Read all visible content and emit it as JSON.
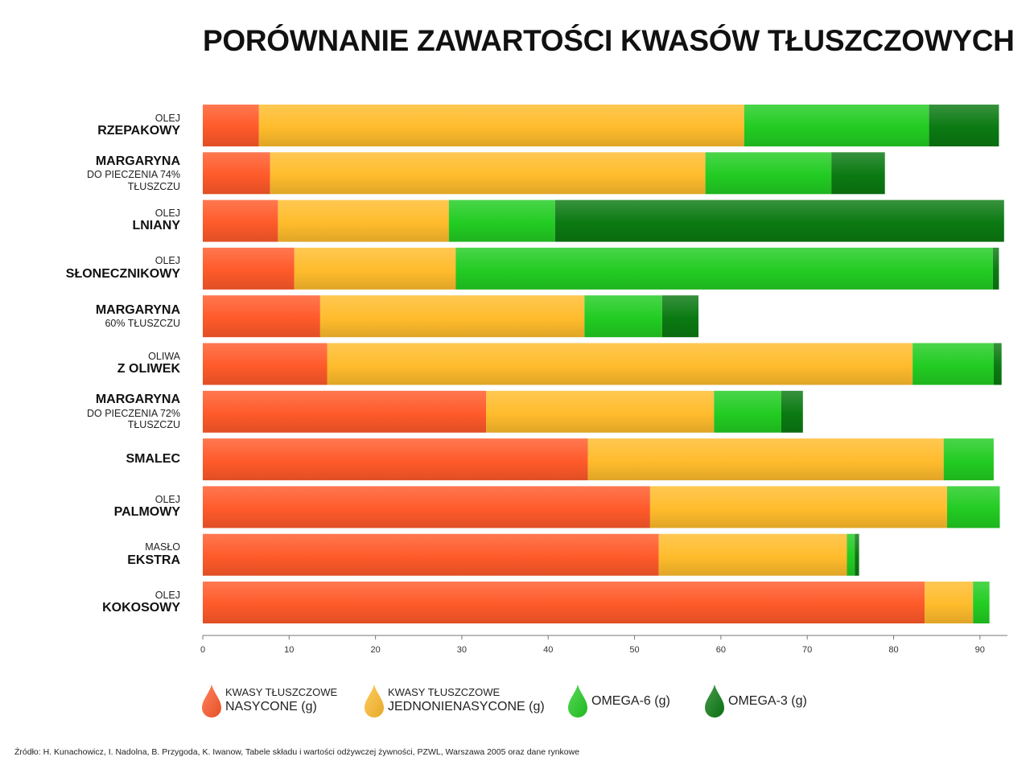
{
  "chart_data": {
    "type": "bar",
    "orientation": "horizontal",
    "stacked": true,
    "title": "PORÓWNANIE ZAWARTOŚCI KWASÓW TŁUSZCZOWYCH",
    "categories": [
      {
        "pre": "OLEJ",
        "main": "RZEPAKOWY",
        "post": ""
      },
      {
        "pre": "",
        "main": "MARGARYNA",
        "post": "DO PIECZENIA 74% TŁUSZCZU"
      },
      {
        "pre": "OLEJ",
        "main": "LNIANY",
        "post": ""
      },
      {
        "pre": "OLEJ",
        "main": "SŁONECZNIKOWY",
        "post": ""
      },
      {
        "pre": "",
        "main": "MARGARYNA",
        "post": "60% TŁUSZCZU"
      },
      {
        "pre": "OLIWA",
        "main": "Z OLIWEK",
        "post": ""
      },
      {
        "pre": "",
        "main": "MARGARYNA",
        "post": "DO PIECZENIA 72% TŁUSZCZU"
      },
      {
        "pre": "",
        "main": "SMALEC",
        "post": ""
      },
      {
        "pre": "OLEJ",
        "main": "PALMOWY",
        "post": ""
      },
      {
        "pre": "MASŁO",
        "main": "EKSTRA",
        "post": ""
      },
      {
        "pre": "OLEJ",
        "main": "KOKOSOWY",
        "post": ""
      }
    ],
    "series": [
      {
        "name": "KWASY TŁUSZCZOWE NASYCONE (g)",
        "color": "#ff5a2a",
        "values": [
          6.5,
          7.8,
          8.7,
          10.6,
          13.6,
          14.4,
          32.8,
          44.6,
          51.8,
          52.8,
          83.6
        ]
      },
      {
        "name": "KWASY TŁUSZCZOWE JEDNONIENASYCONE (g)",
        "color": "#ffbc2c",
        "values": [
          56.2,
          50.4,
          19.8,
          18.7,
          30.6,
          67.8,
          26.4,
          41.2,
          34.4,
          21.8,
          5.6
        ]
      },
      {
        "name": "OMEGA-6 (g)",
        "color": "#22cc22",
        "values": [
          21.4,
          14.6,
          12.3,
          62.2,
          9.0,
          9.4,
          7.8,
          5.8,
          6.1,
          0.9,
          1.9
        ]
      },
      {
        "name": "OMEGA-3 (g)",
        "color": "#0b7a12",
        "values": [
          8.1,
          6.2,
          52.0,
          0.7,
          4.2,
          0.9,
          2.5,
          0,
          0,
          0.5,
          0
        ]
      }
    ],
    "xlim": [
      0,
      93
    ],
    "xticks": [
      0,
      10,
      20,
      30,
      40,
      50,
      60,
      70,
      80,
      90
    ],
    "grid": false,
    "legend_position": "bottom"
  },
  "legend": [
    {
      "line1": "KWASY TŁUSZCZOWE",
      "line2": "NASYCONE (g)",
      "color": "#ff5a2a",
      "icon": "drop-icon"
    },
    {
      "line1": "KWASY TŁUSZCZOWE",
      "line2": "JEDNONIENASYCONE (g)",
      "color": "#ffbc2c",
      "icon": "drop-icon"
    },
    {
      "line1": "",
      "line2": "OMEGA-6 (g)",
      "color": "#22cc22",
      "icon": "drop-icon"
    },
    {
      "line1": "",
      "line2": "OMEGA-3 (g)",
      "color": "#0b7a12",
      "icon": "drop-icon"
    }
  ],
  "source": "Źródło: H. Kunachowicz, I. Nadolna, B. Przygoda, K. Iwanow, Tabele składu i wartości odżywczej żywności, PZWL, Warszawa 2005 oraz dane rynkowe"
}
